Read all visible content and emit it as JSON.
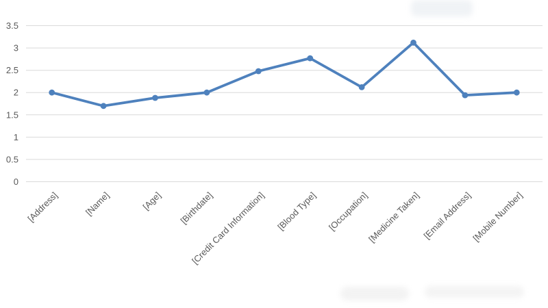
{
  "chart_data": {
    "type": "line",
    "title": "",
    "xlabel": "",
    "ylabel": "",
    "categories": [
      "[Address]",
      "[Name]",
      "[Age]",
      "[Birthdate]",
      "[Credit Card Information]",
      "[Blood Type]",
      "[Occupation]",
      "[Medicine Taken]",
      "[Email Address]",
      "[Mobile Number]"
    ],
    "values": [
      2.0,
      1.7,
      1.88,
      2.0,
      2.48,
      2.77,
      2.12,
      3.12,
      1.94,
      2.0
    ],
    "ylim": [
      0,
      3.5
    ],
    "y_ticks": [
      3.5,
      3,
      2.5,
      2,
      1.5,
      1,
      0.5,
      0
    ],
    "y_tick_labels": [
      "3.5",
      "3",
      "2.5",
      "2",
      "1.5",
      "1",
      "0.5",
      "0"
    ],
    "grid": true,
    "legend": false,
    "x_label_rotation_deg": -45,
    "line_color": "#4e81bd",
    "marker": "circle",
    "marker_color": "#4e81bd",
    "gridline_color": "#d9d9d9",
    "label_color": "#595959",
    "background_color": "#ffffff"
  }
}
